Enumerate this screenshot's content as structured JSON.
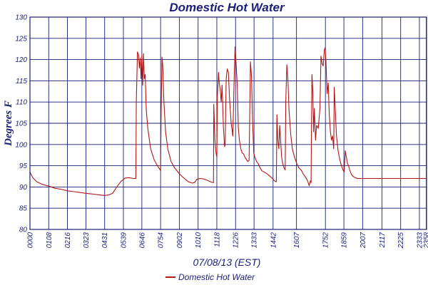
{
  "chart_data": {
    "type": "line",
    "title": "Domestic Hot Water",
    "xlabel": "07/08/13 (EST)",
    "ylabel": "Degrees F",
    "ylim": [
      80,
      130
    ],
    "yticks": [
      80,
      85,
      90,
      95,
      100,
      105,
      110,
      115,
      120,
      125,
      130
    ],
    "x_unit": "minutes_of_day",
    "xlim": [
      0,
      1439
    ],
    "xticks": [
      {
        "label": "0000",
        "minute": 0
      },
      {
        "label": "0108",
        "minute": 68
      },
      {
        "label": "0216",
        "minute": 136
      },
      {
        "label": "0323",
        "minute": 203
      },
      {
        "label": "0431",
        "minute": 271
      },
      {
        "label": "0539",
        "minute": 339
      },
      {
        "label": "0646",
        "minute": 406
      },
      {
        "label": "0754",
        "minute": 474
      },
      {
        "label": "0902",
        "minute": 542
      },
      {
        "label": "1010",
        "minute": 610
      },
      {
        "label": "1118",
        "minute": 678
      },
      {
        "label": "1226",
        "minute": 746
      },
      {
        "label": "1333",
        "minute": 813
      },
      {
        "label": "1442",
        "minute": 882
      },
      {
        "label": "1607",
        "minute": 967
      },
      {
        "label": "1752",
        "minute": 1072
      },
      {
        "label": "1859",
        "minute": 1139
      },
      {
        "label": "2007",
        "minute": 1207
      },
      {
        "label": "2117",
        "minute": 1277
      },
      {
        "label": "2225",
        "minute": 1345
      },
      {
        "label": "2333",
        "minute": 1413
      },
      {
        "label": "2358",
        "minute": 1438
      }
    ],
    "grid": true,
    "legend": "bottom",
    "series": [
      {
        "name": "Domestic Hot Water",
        "color": "#b01818",
        "points": [
          [
            0,
            93.5
          ],
          [
            10,
            92.2
          ],
          [
            25,
            91.2
          ],
          [
            45,
            90.6
          ],
          [
            68,
            90.2
          ],
          [
            90,
            89.7
          ],
          [
            110,
            89.5
          ],
          [
            136,
            89.1
          ],
          [
            160,
            88.9
          ],
          [
            180,
            88.7
          ],
          [
            203,
            88.5
          ],
          [
            230,
            88.3
          ],
          [
            255,
            88.1
          ],
          [
            271,
            88.0
          ],
          [
            285,
            88.1
          ],
          [
            300,
            88.5
          ],
          [
            315,
            90.0
          ],
          [
            330,
            91.3
          ],
          [
            345,
            92.1
          ],
          [
            360,
            92.2
          ],
          [
            375,
            92.0
          ],
          [
            384,
            92.0
          ],
          [
            386,
            110.0
          ],
          [
            390,
            121.8
          ],
          [
            394,
            121.2
          ],
          [
            397,
            118.0
          ],
          [
            400,
            120.3
          ],
          [
            403,
            115.5
          ],
          [
            406,
            121.0
          ],
          [
            409,
            114.0
          ],
          [
            412,
            121.4
          ],
          [
            415,
            115.5
          ],
          [
            418,
            116.5
          ],
          [
            422,
            108.0
          ],
          [
            428,
            103.5
          ],
          [
            438,
            99.0
          ],
          [
            450,
            96.5
          ],
          [
            462,
            95.0
          ],
          [
            472,
            94.1
          ],
          [
            474,
            93.8
          ],
          [
            476,
            108.0
          ],
          [
            479,
            120.6
          ],
          [
            482,
            118.5
          ],
          [
            486,
            110.0
          ],
          [
            492,
            103.0
          ],
          [
            500,
            99.0
          ],
          [
            512,
            96.0
          ],
          [
            525,
            94.5
          ],
          [
            542,
            93.1
          ],
          [
            560,
            92.0
          ],
          [
            575,
            91.2
          ],
          [
            590,
            90.9
          ],
          [
            598,
            91.1
          ],
          [
            605,
            91.8
          ],
          [
            618,
            92.0
          ],
          [
            630,
            91.9
          ],
          [
            642,
            91.6
          ],
          [
            655,
            91.2
          ],
          [
            666,
            91.0
          ],
          [
            667,
            109.5
          ],
          [
            671,
            101.0
          ],
          [
            675,
            98.0
          ],
          [
            678,
            97.0
          ],
          [
            680,
            111.0
          ],
          [
            684,
            117.0
          ],
          [
            687,
            114.5
          ],
          [
            690,
            113.0
          ],
          [
            694,
            110.0
          ],
          [
            697,
            114.0
          ],
          [
            702,
            104.0
          ],
          [
            706,
            99.5
          ],
          [
            708,
            100.0
          ],
          [
            712,
            115.5
          ],
          [
            716,
            117.8
          ],
          [
            720,
            117.0
          ],
          [
            724,
            111.0
          ],
          [
            730,
            105.0
          ],
          [
            736,
            102.0
          ],
          [
            740,
            113.0
          ],
          [
            744,
            123.0
          ],
          [
            748,
            119.0
          ],
          [
            752,
            114.0
          ],
          [
            756,
            104.0
          ],
          [
            760,
            101.0
          ],
          [
            765,
            99.0
          ],
          [
            770,
            98.0
          ],
          [
            775,
            97.8
          ],
          [
            780,
            97.0
          ],
          [
            785,
            96.5
          ],
          [
            790,
            96.0
          ],
          [
            795,
            96.2
          ],
          [
            800,
            119.5
          ],
          [
            804,
            116.0
          ],
          [
            808,
            105.0
          ],
          [
            812,
            98.0
          ],
          [
            816,
            97.0
          ],
          [
            822,
            96.0
          ],
          [
            828,
            95.5
          ],
          [
            835,
            94.5
          ],
          [
            842,
            93.8
          ],
          [
            850,
            93.5
          ],
          [
            858,
            93.2
          ],
          [
            866,
            92.8
          ],
          [
            874,
            92.3
          ],
          [
            880,
            92.0
          ],
          [
            886,
            91.5
          ],
          [
            894,
            91.2
          ],
          [
            896,
            107.0
          ],
          [
            899,
            101.0
          ],
          [
            903,
            99.0
          ],
          [
            906,
            104.5
          ],
          [
            909,
            101.5
          ],
          [
            913,
            97.0
          ],
          [
            917,
            95.5
          ],
          [
            922,
            94.5
          ],
          [
            926,
            94.0
          ],
          [
            928,
            110.0
          ],
          [
            932,
            118.8
          ],
          [
            936,
            115.0
          ],
          [
            940,
            108.0
          ],
          [
            946,
            102.5
          ],
          [
            952,
            99.0
          ],
          [
            960,
            97.0
          ],
          [
            968,
            95.5
          ],
          [
            976,
            94.5
          ],
          [
            984,
            94.0
          ],
          [
            992,
            93.0
          ],
          [
            1000,
            92.3
          ],
          [
            1007,
            91.5
          ],
          [
            1013,
            90.3
          ],
          [
            1018,
            91.5
          ],
          [
            1020,
            91.0
          ],
          [
            1021,
            101.0
          ],
          [
            1023,
            116.5
          ],
          [
            1026,
            113.0
          ],
          [
            1029,
            103.0
          ],
          [
            1032,
            108.5
          ],
          [
            1036,
            101.0
          ],
          [
            1040,
            104.5
          ],
          [
            1046,
            103.8
          ],
          [
            1052,
            108.5
          ],
          [
            1056,
            120.8
          ],
          [
            1060,
            119.0
          ],
          [
            1064,
            118.5
          ],
          [
            1068,
            122.3
          ],
          [
            1071,
            122.8
          ],
          [
            1074,
            119.5
          ],
          [
            1078,
            112.0
          ],
          [
            1082,
            114.5
          ],
          [
            1086,
            107.0
          ],
          [
            1090,
            103.0
          ],
          [
            1094,
            101.0
          ],
          [
            1098,
            102.0
          ],
          [
            1102,
            99.0
          ],
          [
            1104,
            113.5
          ],
          [
            1108,
            108.0
          ],
          [
            1112,
            102.0
          ],
          [
            1118,
            98.5
          ],
          [
            1124,
            96.5
          ],
          [
            1130,
            95.0
          ],
          [
            1136,
            94.0
          ],
          [
            1140,
            93.5
          ],
          [
            1144,
            98.5
          ],
          [
            1148,
            97.0
          ],
          [
            1152,
            95.5
          ],
          [
            1156,
            95.0
          ],
          [
            1160,
            94.0
          ],
          [
            1166,
            93.0
          ],
          [
            1172,
            92.5
          ],
          [
            1180,
            92.2
          ],
          [
            1188,
            92.0
          ],
          [
            1198,
            92.0
          ],
          [
            1210,
            92.0
          ],
          [
            1222,
            92.0
          ],
          [
            1235,
            92.0
          ],
          [
            1248,
            92.0
          ],
          [
            1262,
            92.0
          ],
          [
            1277,
            92.0
          ],
          [
            1290,
            92.0
          ],
          [
            1305,
            92.0
          ],
          [
            1320,
            92.0
          ],
          [
            1335,
            92.0
          ],
          [
            1350,
            92.0
          ],
          [
            1365,
            92.0
          ],
          [
            1380,
            92.0
          ],
          [
            1395,
            92.0
          ],
          [
            1410,
            92.0
          ],
          [
            1425,
            92.0
          ],
          [
            1439,
            92.0
          ]
        ]
      }
    ]
  }
}
